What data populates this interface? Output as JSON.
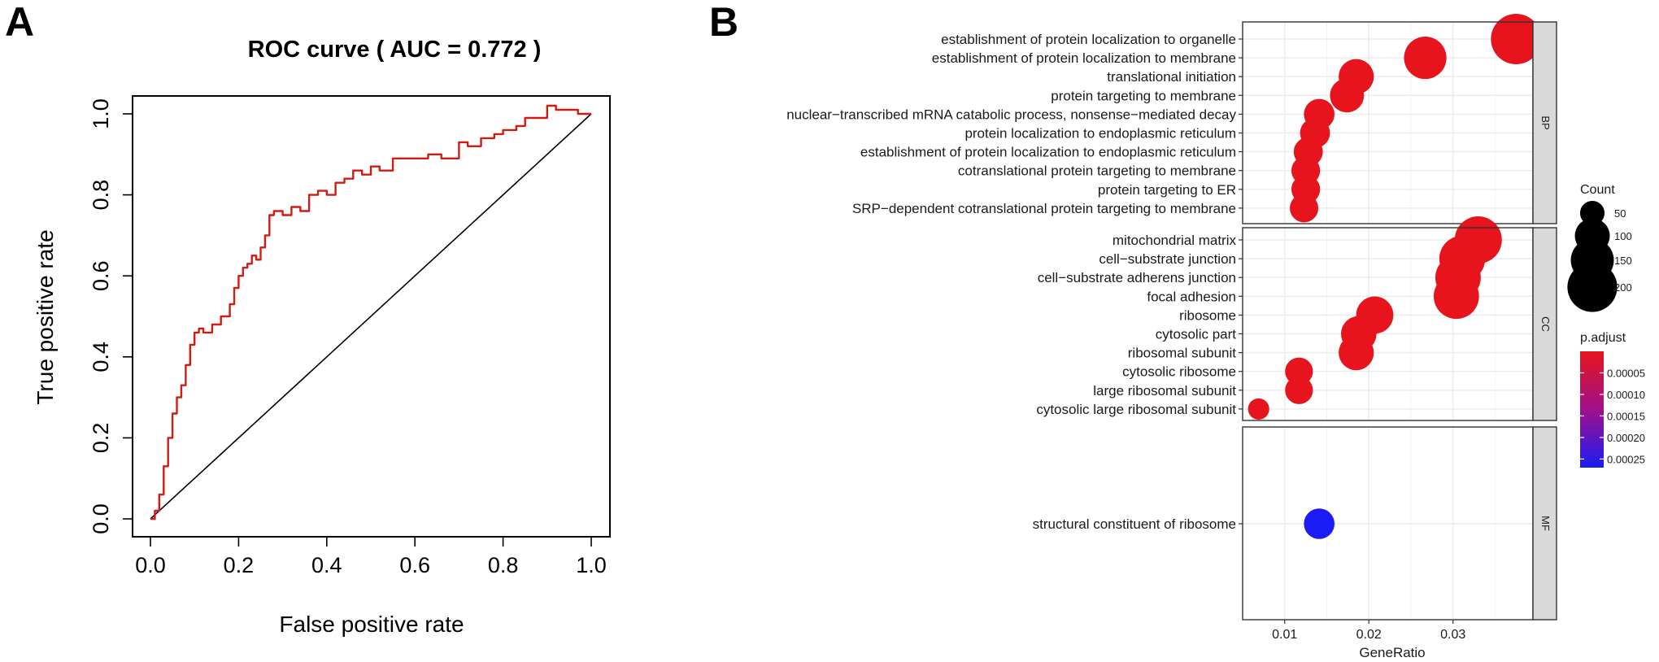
{
  "panels": {
    "a_label": "A",
    "b_label": "B"
  },
  "chart_data": [
    {
      "type": "line",
      "title": "ROC curve ( AUC =  0.772 )",
      "xlabel": "False positive rate",
      "ylabel": "True positive rate",
      "xlim": [
        0,
        1
      ],
      "ylim": [
        0,
        1
      ],
      "xticks": [
        "0.0",
        "0.2",
        "0.4",
        "0.6",
        "0.8",
        "1.0"
      ],
      "yticks": [
        "0.0",
        "0.2",
        "0.4",
        "0.6",
        "0.8",
        "1.0"
      ],
      "colors": {
        "curve": "#d01c12",
        "diagonal": "#000000"
      },
      "series": [
        {
          "x": [
            0.0,
            0.01,
            0.02,
            0.03,
            0.04,
            0.05,
            0.06,
            0.07,
            0.08,
            0.09,
            0.1,
            0.11,
            0.12,
            0.14,
            0.16,
            0.18,
            0.19,
            0.2,
            0.21,
            0.22,
            0.23,
            0.24,
            0.25,
            0.26,
            0.27,
            0.28,
            0.3,
            0.32,
            0.34,
            0.36,
            0.38,
            0.4,
            0.42,
            0.44,
            0.46,
            0.48,
            0.5,
            0.52,
            0.55,
            0.58,
            0.6,
            0.63,
            0.66,
            0.7,
            0.72,
            0.75,
            0.78,
            0.8,
            0.83,
            0.85,
            0.88,
            0.9,
            0.92,
            0.95,
            0.97,
            1.0
          ],
          "y": [
            0.0,
            0.02,
            0.06,
            0.13,
            0.2,
            0.26,
            0.3,
            0.33,
            0.38,
            0.43,
            0.46,
            0.47,
            0.46,
            0.48,
            0.5,
            0.53,
            0.57,
            0.6,
            0.62,
            0.63,
            0.65,
            0.64,
            0.67,
            0.7,
            0.75,
            0.76,
            0.75,
            0.77,
            0.76,
            0.8,
            0.81,
            0.8,
            0.83,
            0.84,
            0.86,
            0.85,
            0.87,
            0.86,
            0.89,
            0.89,
            0.89,
            0.9,
            0.89,
            0.93,
            0.92,
            0.94,
            0.95,
            0.96,
            0.97,
            0.99,
            0.99,
            1.02,
            1.01,
            1.01,
            1.0,
            1.0
          ]
        }
      ]
    },
    {
      "type": "scatter",
      "xlabel": "GeneRatio",
      "xticks": [
        0.01,
        0.02,
        0.03
      ],
      "xlim": [
        0.005,
        0.0395
      ],
      "facets": [
        {
          "name": "BP",
          "categories": [
            "establishment of protein localization to organelle",
            "establishment of protein localization to membrane",
            "translational initiation",
            "protein targeting to membrane",
            "nuclear−transcribed mRNA catabolic process, nonsense−mediated decay",
            "protein localization to endoplasmic reticulum",
            "establishment of protein localization to endoplasmic reticulum",
            "cotranslational protein targeting to membrane",
            "protein targeting to ER",
            "SRP−dependent cotranslational protein targeting to membrane"
          ],
          "gene_ratio": [
            0.0375,
            0.0267,
            0.0185,
            0.0174,
            0.0141,
            0.0136,
            0.0128,
            0.0125,
            0.0125,
            0.0123
          ],
          "count": [
            205,
            146,
            101,
            95,
            77,
            74,
            70,
            68,
            68,
            67
          ],
          "p_adjust": [
            1e-06,
            1e-06,
            1e-06,
            1e-06,
            1e-06,
            1e-06,
            1e-06,
            1e-06,
            1e-06,
            1e-06
          ]
        },
        {
          "name": "CC",
          "categories": [
            "mitochondrial matrix",
            "cell−substrate junction",
            "cell−substrate adherens junction",
            "focal adhesion",
            "ribosome",
            "cytosolic part",
            "ribosomal subunit",
            "cytosolic ribosome",
            "large ribosomal subunit",
            "cytosolic large ribosomal subunit"
          ],
          "gene_ratio": [
            0.033,
            0.0311,
            0.0306,
            0.0304,
            0.0207,
            0.0188,
            0.0185,
            0.0117,
            0.0117,
            0.0069
          ],
          "count": [
            180,
            170,
            167,
            166,
            113,
            103,
            101,
            64,
            64,
            38
          ],
          "p_adjust": [
            1e-06,
            1e-06,
            1e-06,
            1e-06,
            1e-06,
            1e-06,
            1e-06,
            1e-06,
            1e-06,
            1e-06
          ]
        },
        {
          "name": "MF",
          "categories": [
            "structural constituent of ribosome"
          ],
          "gene_ratio": [
            0.0141
          ],
          "count": [
            77
          ],
          "p_adjust": [
            0.00027
          ]
        }
      ],
      "legend_size": {
        "title": "Count",
        "values": [
          50,
          100,
          150,
          200
        ],
        "labels": [
          "50",
          "100",
          "150",
          "200"
        ]
      },
      "legend_color": {
        "title": "p.adjust",
        "labels": [
          "0.00005",
          "0.00010",
          "0.00015",
          "0.00020",
          "0.00025"
        ],
        "values": [
          5e-05,
          0.0001,
          0.00015,
          0.0002,
          0.00025
        ],
        "range": [
          0.0,
          0.00027
        ],
        "colors": {
          "low": "#e8141c",
          "high": "#1b1bf5"
        }
      },
      "colors": {
        "strip": "#d9d9d9",
        "grid": "#ebebeb",
        "frame": "#333333"
      }
    }
  ]
}
